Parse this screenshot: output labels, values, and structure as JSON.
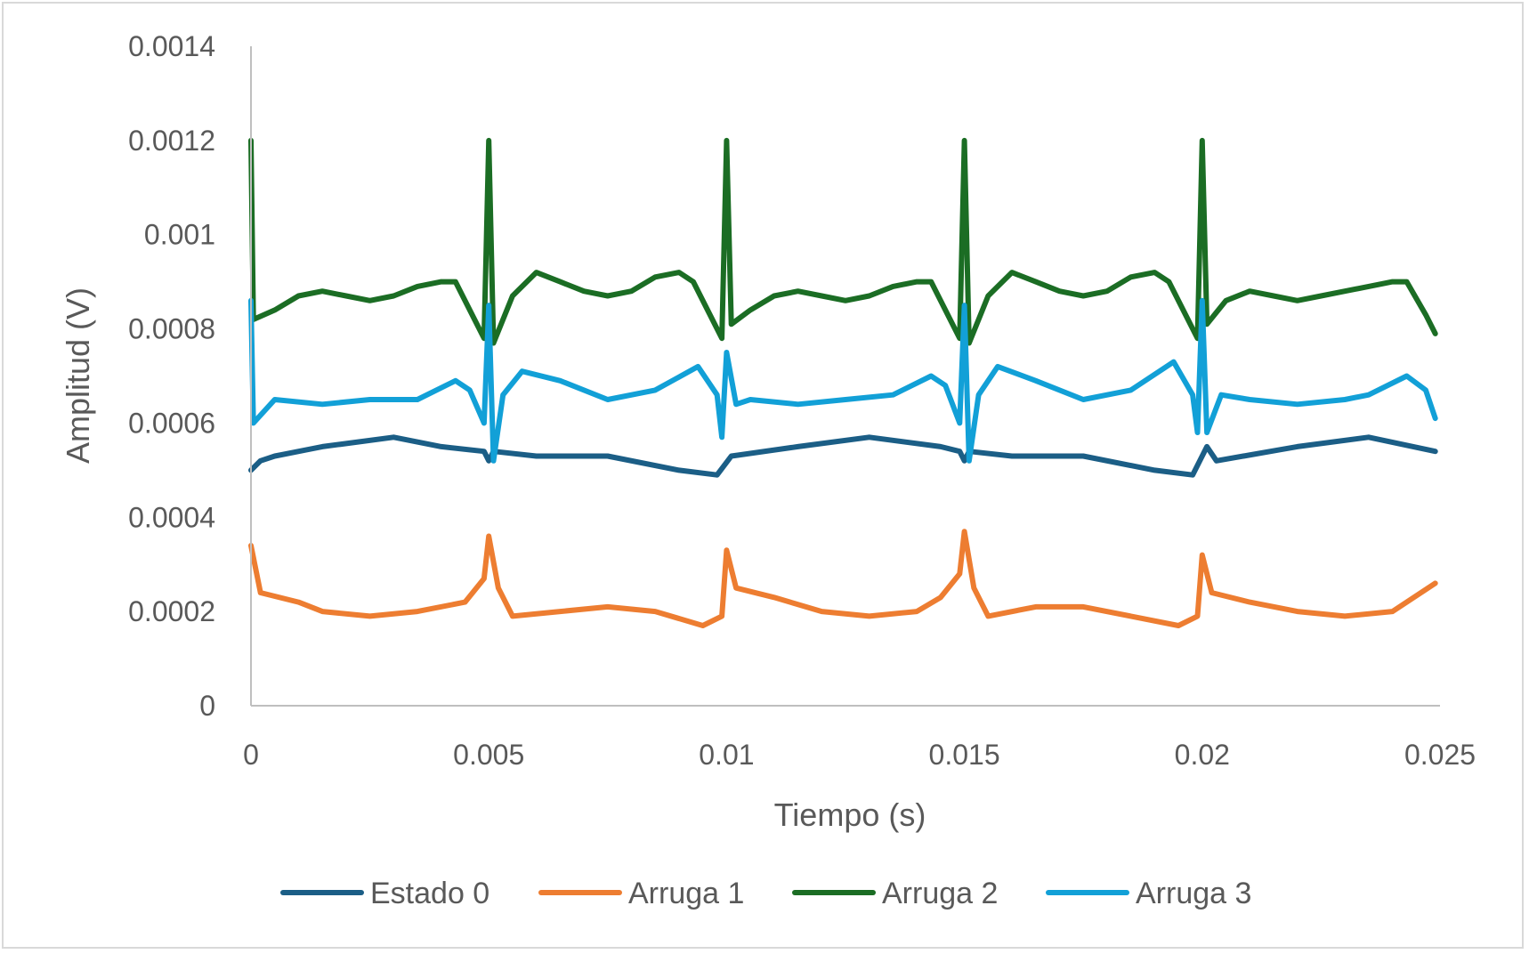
{
  "chart_data": {
    "type": "line",
    "title": "",
    "xlabel": "Tiempo (s)",
    "ylabel": "Amplitud (V)",
    "xlim": [
      0,
      0.025
    ],
    "ylim": [
      0,
      0.0014
    ],
    "x_ticks": [
      "0",
      "0.005",
      "0.01",
      "0.015",
      "0.02",
      "0.025"
    ],
    "x_tick_values": [
      0,
      0.005,
      0.01,
      0.015,
      0.02,
      0.025
    ],
    "y_ticks": [
      "0",
      "0.0002",
      "0.0004",
      "0.0006",
      "0.0008",
      "0.001",
      "0.0012",
      "0.0014"
    ],
    "y_tick_values": [
      0,
      0.0002,
      0.0004,
      0.0006,
      0.0008,
      0.001,
      0.0012,
      0.0014
    ],
    "grid": false,
    "legend_position": "bottom",
    "series": [
      {
        "name": "Estado 0",
        "color": "#1b5e86",
        "points": [
          [
            0,
            0.0005
          ],
          [
            0.0002,
            0.00052
          ],
          [
            0.0005,
            0.00053
          ],
          [
            0.0015,
            0.00055
          ],
          [
            0.003,
            0.00057
          ],
          [
            0.004,
            0.00055
          ],
          [
            0.0049,
            0.00054
          ],
          [
            0.005,
            0.00052
          ],
          [
            0.0051,
            0.00054
          ],
          [
            0.006,
            0.00053
          ],
          [
            0.0075,
            0.00053
          ],
          [
            0.009,
            0.0005
          ],
          [
            0.0098,
            0.00049
          ],
          [
            0.0101,
            0.00053
          ],
          [
            0.0115,
            0.00055
          ],
          [
            0.013,
            0.00057
          ],
          [
            0.0145,
            0.00055
          ],
          [
            0.0149,
            0.00054
          ],
          [
            0.015,
            0.00052
          ],
          [
            0.0151,
            0.00054
          ],
          [
            0.016,
            0.00053
          ],
          [
            0.0175,
            0.00053
          ],
          [
            0.019,
            0.0005
          ],
          [
            0.0198,
            0.00049
          ],
          [
            0.0201,
            0.00055
          ],
          [
            0.0203,
            0.00052
          ],
          [
            0.022,
            0.00055
          ],
          [
            0.0235,
            0.00057
          ],
          [
            0.0249,
            0.00054
          ]
        ]
      },
      {
        "name": "Arruga 1",
        "color": "#ed7d31",
        "points": [
          [
            0,
            0.00034
          ],
          [
            0.0002,
            0.00024
          ],
          [
            0.001,
            0.00022
          ],
          [
            0.0015,
            0.0002
          ],
          [
            0.0025,
            0.00019
          ],
          [
            0.0035,
            0.0002
          ],
          [
            0.0045,
            0.00022
          ],
          [
            0.0049,
            0.00027
          ],
          [
            0.005,
            0.00036
          ],
          [
            0.0052,
            0.00025
          ],
          [
            0.0055,
            0.00019
          ],
          [
            0.0065,
            0.0002
          ],
          [
            0.0075,
            0.00021
          ],
          [
            0.0085,
            0.0002
          ],
          [
            0.0095,
            0.00017
          ],
          [
            0.0099,
            0.00019
          ],
          [
            0.01,
            0.00033
          ],
          [
            0.0102,
            0.00025
          ],
          [
            0.011,
            0.00023
          ],
          [
            0.012,
            0.0002
          ],
          [
            0.013,
            0.00019
          ],
          [
            0.014,
            0.0002
          ],
          [
            0.0145,
            0.00023
          ],
          [
            0.0149,
            0.00028
          ],
          [
            0.015,
            0.00037
          ],
          [
            0.0152,
            0.00025
          ],
          [
            0.0155,
            0.00019
          ],
          [
            0.0165,
            0.00021
          ],
          [
            0.0175,
            0.00021
          ],
          [
            0.0185,
            0.00019
          ],
          [
            0.0195,
            0.00017
          ],
          [
            0.0199,
            0.00019
          ],
          [
            0.02,
            0.00032
          ],
          [
            0.0202,
            0.00024
          ],
          [
            0.021,
            0.00022
          ],
          [
            0.022,
            0.0002
          ],
          [
            0.023,
            0.00019
          ],
          [
            0.024,
            0.0002
          ],
          [
            0.0249,
            0.00026
          ]
        ]
      },
      {
        "name": "Arruga 2",
        "color": "#1b6d24",
        "points": [
          [
            0,
            0.0012
          ],
          [
            5e-05,
            0.00082
          ],
          [
            0.0005,
            0.00084
          ],
          [
            0.001,
            0.00087
          ],
          [
            0.0015,
            0.00088
          ],
          [
            0.002,
            0.00087
          ],
          [
            0.0025,
            0.00086
          ],
          [
            0.003,
            0.00087
          ],
          [
            0.0035,
            0.00089
          ],
          [
            0.004,
            0.0009
          ],
          [
            0.0043,
            0.0009
          ],
          [
            0.0047,
            0.00082
          ],
          [
            0.0049,
            0.00078
          ],
          [
            0.005,
            0.0012
          ],
          [
            0.0051,
            0.00077
          ],
          [
            0.0055,
            0.00087
          ],
          [
            0.006,
            0.00092
          ],
          [
            0.0065,
            0.0009
          ],
          [
            0.007,
            0.00088
          ],
          [
            0.0075,
            0.00087
          ],
          [
            0.008,
            0.00088
          ],
          [
            0.0085,
            0.00091
          ],
          [
            0.009,
            0.00092
          ],
          [
            0.0093,
            0.0009
          ],
          [
            0.0097,
            0.00082
          ],
          [
            0.0099,
            0.00078
          ],
          [
            0.01,
            0.0012
          ],
          [
            0.0101,
            0.00081
          ],
          [
            0.0105,
            0.00084
          ],
          [
            0.011,
            0.00087
          ],
          [
            0.0115,
            0.00088
          ],
          [
            0.012,
            0.00087
          ],
          [
            0.0125,
            0.00086
          ],
          [
            0.013,
            0.00087
          ],
          [
            0.0135,
            0.00089
          ],
          [
            0.014,
            0.0009
          ],
          [
            0.0143,
            0.0009
          ],
          [
            0.0147,
            0.00082
          ],
          [
            0.0149,
            0.00078
          ],
          [
            0.015,
            0.0012
          ],
          [
            0.0151,
            0.00077
          ],
          [
            0.0155,
            0.00087
          ],
          [
            0.016,
            0.00092
          ],
          [
            0.0165,
            0.0009
          ],
          [
            0.017,
            0.00088
          ],
          [
            0.0175,
            0.00087
          ],
          [
            0.018,
            0.00088
          ],
          [
            0.0185,
            0.00091
          ],
          [
            0.019,
            0.00092
          ],
          [
            0.0193,
            0.0009
          ],
          [
            0.0197,
            0.00082
          ],
          [
            0.0199,
            0.00078
          ],
          [
            0.02,
            0.0012
          ],
          [
            0.0201,
            0.00081
          ],
          [
            0.0205,
            0.00086
          ],
          [
            0.021,
            0.00088
          ],
          [
            0.0215,
            0.00087
          ],
          [
            0.022,
            0.00086
          ],
          [
            0.0225,
            0.00087
          ],
          [
            0.023,
            0.00088
          ],
          [
            0.0235,
            0.00089
          ],
          [
            0.024,
            0.0009
          ],
          [
            0.0243,
            0.0009
          ],
          [
            0.0247,
            0.00083
          ],
          [
            0.0249,
            0.00079
          ]
        ]
      },
      {
        "name": "Arruga 3",
        "color": "#12a0d7",
        "points": [
          [
            0,
            0.00086
          ],
          [
            5e-05,
            0.0006
          ],
          [
            0.0005,
            0.00065
          ],
          [
            0.0015,
            0.00064
          ],
          [
            0.0025,
            0.00065
          ],
          [
            0.0035,
            0.00065
          ],
          [
            0.0043,
            0.00069
          ],
          [
            0.0046,
            0.00067
          ],
          [
            0.0049,
            0.0006
          ],
          [
            0.005,
            0.00085
          ],
          [
            0.0051,
            0.00052
          ],
          [
            0.0053,
            0.00066
          ],
          [
            0.0057,
            0.00071
          ],
          [
            0.0065,
            0.00069
          ],
          [
            0.0075,
            0.00065
          ],
          [
            0.0085,
            0.00067
          ],
          [
            0.0094,
            0.00072
          ],
          [
            0.0098,
            0.00066
          ],
          [
            0.0099,
            0.00057
          ],
          [
            0.01,
            0.00075
          ],
          [
            0.0102,
            0.00064
          ],
          [
            0.0105,
            0.00065
          ],
          [
            0.0115,
            0.00064
          ],
          [
            0.0125,
            0.00065
          ],
          [
            0.0135,
            0.00066
          ],
          [
            0.0143,
            0.0007
          ],
          [
            0.0146,
            0.00068
          ],
          [
            0.0149,
            0.0006
          ],
          [
            0.015,
            0.00085
          ],
          [
            0.0151,
            0.00052
          ],
          [
            0.0153,
            0.00066
          ],
          [
            0.0157,
            0.00072
          ],
          [
            0.0165,
            0.00069
          ],
          [
            0.0175,
            0.00065
          ],
          [
            0.0185,
            0.00067
          ],
          [
            0.0194,
            0.00073
          ],
          [
            0.0198,
            0.00066
          ],
          [
            0.0199,
            0.00058
          ],
          [
            0.02,
            0.00086
          ],
          [
            0.0201,
            0.00058
          ],
          [
            0.0204,
            0.00066
          ],
          [
            0.021,
            0.00065
          ],
          [
            0.022,
            0.00064
          ],
          [
            0.023,
            0.00065
          ],
          [
            0.0235,
            0.00066
          ],
          [
            0.0243,
            0.0007
          ],
          [
            0.0247,
            0.00067
          ],
          [
            0.0249,
            0.00061
          ]
        ]
      }
    ]
  }
}
